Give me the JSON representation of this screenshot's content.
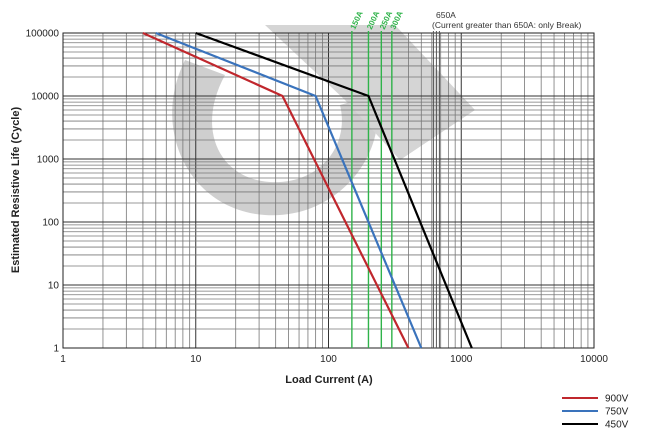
{
  "chart_data": {
    "type": "line",
    "xlabel": "Load Current (A)",
    "ylabel": "Estimated Resistive Life (Cycle)",
    "x_scale": "log",
    "y_scale": "log",
    "xlim": [
      1,
      10000
    ],
    "ylim": [
      1,
      100000
    ],
    "x_ticks": [
      "1",
      "10",
      "100",
      "1000",
      "10000"
    ],
    "y_ticks": [
      "1",
      "10",
      "100",
      "1000",
      "10000",
      "100000"
    ],
    "grid": true,
    "legend_position": "bottom-right",
    "series": [
      {
        "name": "900V",
        "color": "#c0272d",
        "points": [
          [
            4,
            100000
          ],
          [
            45,
            10000
          ],
          [
            400,
            1
          ]
        ]
      },
      {
        "name": "750V",
        "color": "#3a73bc",
        "points": [
          [
            5,
            100000
          ],
          [
            80,
            10000
          ],
          [
            500,
            1
          ]
        ]
      },
      {
        "name": "450V",
        "color": "#000000",
        "points": [
          [
            10,
            100000
          ],
          [
            200,
            10000
          ],
          [
            1200,
            1
          ]
        ]
      }
    ],
    "vertical_lines": [
      {
        "x": 150,
        "label": "150A",
        "color": "#2fb34a"
      },
      {
        "x": 200,
        "label": "200A",
        "color": "#2fb34a"
      },
      {
        "x": 250,
        "label": "250A",
        "color": "#2fb34a"
      },
      {
        "x": 300,
        "label": "300A",
        "color": "#2fb34a"
      }
    ],
    "limit_line": {
      "x": 650,
      "label": "650A",
      "note": "(Current greater than 650A: only Break)",
      "color": "#555555"
    }
  }
}
